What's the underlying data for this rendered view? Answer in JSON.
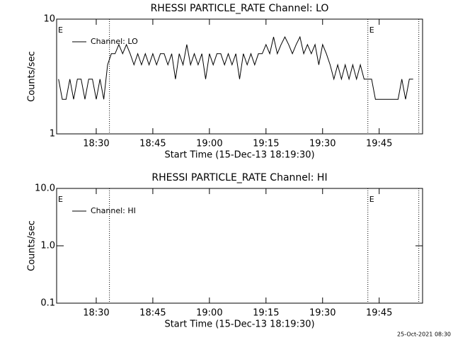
{
  "chart_data": [
    {
      "type": "line",
      "title": "RHESSI PARTICLE_RATE Channel: LO",
      "xlabel": "Start Time (15-Dec-13 18:19:30)",
      "ylabel": "Counts/sec",
      "log_y": true,
      "legend": "upper left",
      "xlim": [
        "18:19:30",
        "19:56:30"
      ],
      "xticks": [
        "18:30",
        "18:45",
        "19:00",
        "19:15",
        "19:30",
        "19:45"
      ],
      "ylim": [
        1,
        10
      ],
      "yticks": [
        1,
        10
      ],
      "vlines": [
        "18:33:30",
        "19:42",
        "19:55:30"
      ],
      "annotations": [
        {
          "text": "E",
          "x": "18:19:30"
        },
        {
          "text": "E",
          "x": "19:42"
        }
      ],
      "x": [
        "18:20",
        "18:21",
        "18:22",
        "18:23",
        "18:24",
        "18:25",
        "18:26",
        "18:27",
        "18:28",
        "18:29",
        "18:30",
        "18:31",
        "18:32",
        "18:33",
        "18:34",
        "18:35",
        "18:36",
        "18:37",
        "18:38",
        "18:39",
        "18:40",
        "18:41",
        "18:42",
        "18:43",
        "18:44",
        "18:45",
        "18:46",
        "18:47",
        "18:48",
        "18:49",
        "18:50",
        "18:51",
        "18:52",
        "18:53",
        "18:54",
        "18:55",
        "18:56",
        "18:57",
        "18:58",
        "18:59",
        "19:00",
        "19:01",
        "19:02",
        "19:03",
        "19:04",
        "19:05",
        "19:06",
        "19:07",
        "19:08",
        "19:09",
        "19:10",
        "19:11",
        "19:12",
        "19:13",
        "19:14",
        "19:15",
        "19:16",
        "19:17",
        "19:18",
        "19:19",
        "19:20",
        "19:21",
        "19:22",
        "19:23",
        "19:24",
        "19:25",
        "19:26",
        "19:27",
        "19:28",
        "19:29",
        "19:30",
        "19:31",
        "19:32",
        "19:33",
        "19:34",
        "19:35",
        "19:36",
        "19:37",
        "19:38",
        "19:39",
        "19:40",
        "19:41",
        "19:42",
        "19:43",
        "19:44",
        "19:45",
        "19:46",
        "19:47",
        "19:48",
        "19:49",
        "19:50",
        "19:51",
        "19:52",
        "19:53",
        "19:54"
      ],
      "series": [
        {
          "name": "Channel: LO",
          "color": "#000000",
          "values": [
            3,
            2,
            2,
            3,
            2,
            3,
            3,
            2,
            3,
            3,
            2,
            3,
            2,
            4,
            5,
            5,
            6,
            5,
            6,
            5,
            4,
            5,
            4,
            5,
            4,
            5,
            4,
            5,
            5,
            4,
            5,
            3,
            5,
            4,
            6,
            4,
            5,
            4,
            5,
            3,
            5,
            4,
            5,
            5,
            4,
            5,
            4,
            5,
            3,
            5,
            4,
            5,
            4,
            5,
            5,
            6,
            5,
            7,
            5,
            6,
            7,
            6,
            5,
            6,
            7,
            5,
            6,
            5,
            6,
            4,
            6,
            5,
            4,
            3,
            4,
            3,
            4,
            3,
            4,
            3,
            4,
            3,
            3,
            3,
            2,
            2,
            2,
            2,
            2,
            2,
            2,
            3,
            2,
            3,
            3
          ]
        }
      ]
    },
    {
      "type": "line",
      "title": "RHESSI PARTICLE_RATE Channel: HI",
      "xlabel": "Start Time (15-Dec-13 18:19:30)",
      "ylabel": "Counts/sec",
      "log_y": true,
      "legend": "upper left",
      "xlim": [
        "18:19:30",
        "19:56:30"
      ],
      "xticks": [
        "18:30",
        "18:45",
        "19:00",
        "19:15",
        "19:30",
        "19:45"
      ],
      "ylim": [
        0.1,
        10
      ],
      "yticks": [
        0.1,
        {
          "value": 1,
          "label": "1.0"
        },
        {
          "value": 10,
          "label": "10.0"
        }
      ],
      "vlines": [
        "18:33:30",
        "19:42",
        "19:55:30"
      ],
      "annotations": [
        {
          "text": "E",
          "x": "18:19:30"
        },
        {
          "text": "E",
          "x": "19:42"
        }
      ],
      "x": [],
      "series": [
        {
          "name": "Channel: HI",
          "color": "#000000",
          "values": []
        }
      ]
    }
  ],
  "footer": "25-Oct-2021 08:30"
}
